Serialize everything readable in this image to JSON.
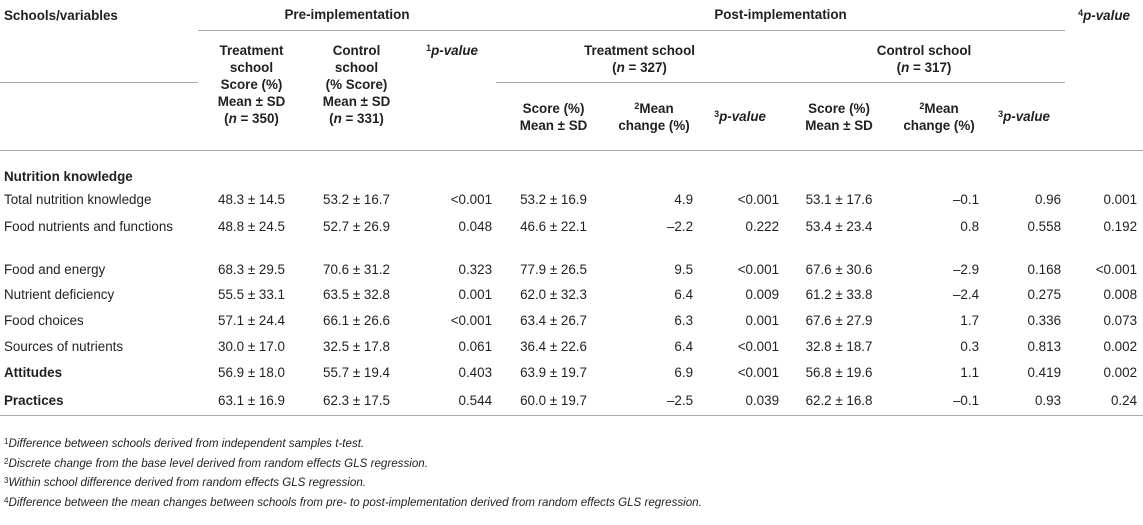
{
  "header": {
    "col_schools": "Schools/variables",
    "pre": "Pre-implementation",
    "post": "Post-implementation",
    "p4_sup": "4",
    "p4": "p-value",
    "pre_treat": [
      "Treatment",
      "school",
      "Score (%)",
      "Mean ± SD",
      "(n = 350)"
    ],
    "pre_control": [
      "Control",
      "school",
      "(% Score)",
      "Mean ± SD",
      "(n = 331)"
    ],
    "pre_p_sup": "1",
    "pre_p": "p-value",
    "post_treat_title": "Treatment school",
    "post_treat_n": "(n = 327)",
    "post_control_title": "Control school",
    "post_control_n": "(n = 317)",
    "score_l1": "Score (%)",
    "score_l2": "Mean ± SD",
    "mean_sup": "2",
    "mean_l1": "Mean",
    "mean_l2": "change (%)",
    "p3_sup": "3",
    "p3": "p-value"
  },
  "rows": [
    {
      "label": "Nutrition knowledge",
      "section": true,
      "cells": []
    },
    {
      "label": "Total nutrition knowledge",
      "section": false,
      "cells": [
        "48.3 ± 14.5",
        "53.2 ± 16.7",
        "<0.001",
        "53.2 ± 16.9",
        "4.9",
        "<0.001",
        "53.1 ± 17.6",
        "–0.1",
        "0.96",
        "0.001"
      ]
    },
    {
      "label": "Food nutrients and functions",
      "section": false,
      "cells": [
        "48.8 ± 24.5",
        "52.7 ± 26.9",
        "0.048",
        "46.6 ± 22.1",
        "–2.2",
        "0.222",
        "53.4 ± 23.4",
        "0.8",
        "0.558",
        "0.192"
      ]
    },
    {
      "label": "Food and energy",
      "section": false,
      "cells": [
        "68.3 ± 29.5",
        "70.6 ± 31.2",
        "0.323",
        "77.9 ± 26.5",
        "9.5",
        "<0.001",
        "67.6 ± 30.6",
        "–2.9",
        "0.168",
        "<0.001"
      ]
    },
    {
      "label": "Nutrient deficiency",
      "section": false,
      "cells": [
        "55.5 ± 33.1",
        "63.5 ± 32.8",
        "0.001",
        "62.0 ± 32.3",
        "6.4",
        "0.009",
        "61.2 ± 33.8",
        "–2.4",
        "0.275",
        "0.008"
      ]
    },
    {
      "label": "Food choices",
      "section": false,
      "cells": [
        "57.1 ± 24.4",
        "66.1 ± 26.6",
        "<0.001",
        "63.4 ± 26.7",
        "6.3",
        "0.001",
        "67.6 ± 27.9",
        "1.7",
        "0.336",
        "0.073"
      ]
    },
    {
      "label": "Sources of nutrients",
      "section": false,
      "cells": [
        "30.0 ± 17.0",
        "32.5 ± 17.8",
        "0.061",
        "36.4 ± 22.6",
        "6.4",
        "<0.001",
        "32.8 ± 18.7",
        "0.3",
        "0.813",
        "0.002"
      ]
    },
    {
      "label": "Attitudes",
      "section": true,
      "cells": [
        "56.9 ± 18.0",
        "55.7 ± 19.4",
        "0.403",
        "63.9 ± 19.7",
        "6.9",
        "<0.001",
        "56.8 ± 19.6",
        "1.1",
        "0.419",
        "0.002"
      ]
    },
    {
      "label": "Practices",
      "section": true,
      "cells": [
        "63.1 ± 16.9",
        "62.3 ± 17.5",
        "0.544",
        "60.0 ± 19.7",
        "–2.5",
        "0.039",
        "62.2 ± 16.8",
        "–0.1",
        "0.93",
        "0.24"
      ]
    }
  ],
  "footnotes": [
    {
      "sup": "1",
      "text": "Difference between schools derived from independent samples t-test."
    },
    {
      "sup": "2",
      "text": "Discrete change from the base level derived from random effects GLS regression."
    },
    {
      "sup": "3",
      "text": "Within school difference derived from random effects GLS regression."
    },
    {
      "sup": "4",
      "text": "Difference between the mean changes between schools from pre- to post-implementation derived from random effects GLS regression."
    }
  ],
  "colors": {
    "rule": "#a7a9ac",
    "text": "#231f20"
  }
}
